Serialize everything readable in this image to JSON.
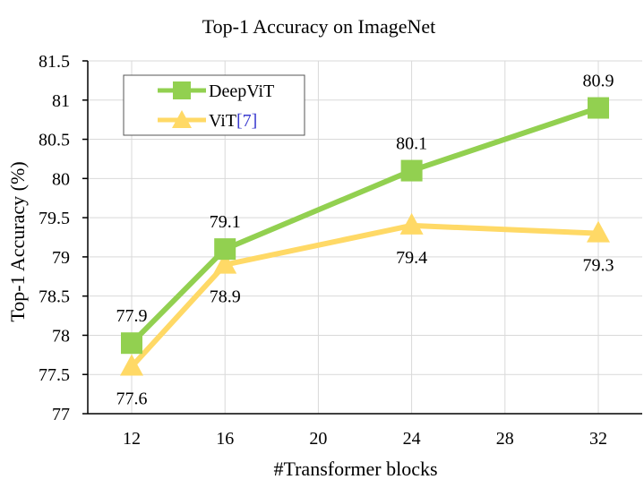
{
  "chart_data": {
    "type": "line",
    "title": "Top-1 Accuracy on ImageNet",
    "xlabel": "#Transformer blocks",
    "ylabel": "Top-1 Accuracy (%)",
    "x": [
      12,
      16,
      24,
      32
    ],
    "xticks": [
      "12",
      "16",
      "20",
      "24",
      "28",
      "32"
    ],
    "xlim": [
      12,
      32
    ],
    "yticks": [
      "77",
      "77.5",
      "78",
      "78.5",
      "79",
      "79.5",
      "80",
      "80.5",
      "81",
      "81.5"
    ],
    "ylim": [
      77,
      81.5
    ],
    "grid": true,
    "legend": "top-left",
    "series": [
      {
        "name": "DeepViT",
        "marker": "square",
        "color": "#92d050",
        "values": [
          77.9,
          79.1,
          80.1,
          80.9
        ],
        "labels": [
          "77.9",
          "79.1",
          "80.1",
          "80.9"
        ],
        "label_position": "above"
      },
      {
        "name": "ViT",
        "citation": "[7]",
        "citation_color": "#3a3acf",
        "marker": "triangle",
        "color": "#ffd966",
        "values": [
          77.6,
          78.9,
          79.4,
          79.3
        ],
        "labels": [
          "77.6",
          "78.9",
          "79.4",
          "79.3"
        ],
        "label_position": "below"
      }
    ]
  }
}
